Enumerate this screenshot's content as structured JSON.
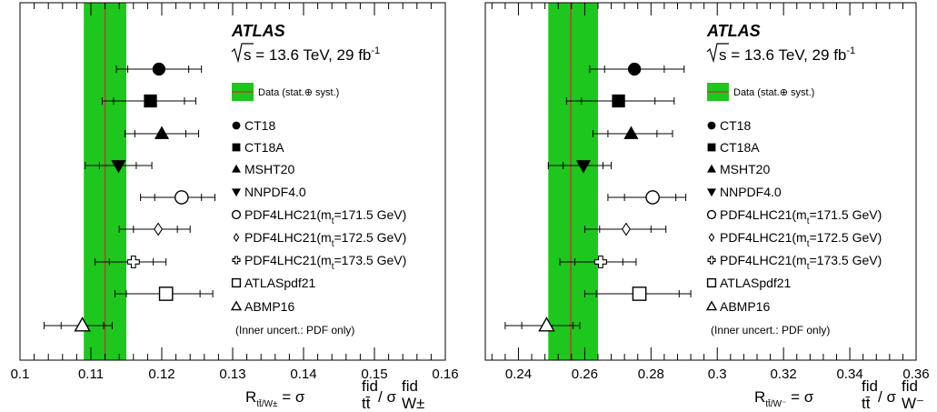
{
  "chart_data": [
    {
      "type": "scatter",
      "experiment": "ATLAS",
      "energy": {
        "sqrt_s": "s",
        "value": " = 13.6 TeV, 29 fb",
        "sup": "-1"
      },
      "xlabel": {
        "R": "R",
        "sub": "tt̄/W±",
        "eq": " = σ",
        "sup1": "fid",
        "sub1": "tt̄",
        "slash": " / σ",
        "sup2": "fid",
        "sub2": "W±"
      },
      "xlim": [
        0.1,
        0.16
      ],
      "xticks": [
        0.1,
        0.11,
        0.12,
        0.13,
        0.14,
        0.15,
        0.16
      ],
      "xtick_labels": [
        "0.1",
        "0.11",
        "0.12",
        "0.13",
        "0.14",
        "0.15",
        "0.16"
      ],
      "data_band": {
        "value": 0.112,
        "low": 0.109,
        "high": 0.115,
        "label": "Data (stat.⊕ syst.)"
      },
      "note": "(Inner uncert.: PDF only)",
      "points": [
        {
          "label": "CT18",
          "marker": "circle",
          "x": 0.1196,
          "inner": [
            0.1152,
            0.1238
          ],
          "outer": [
            0.1136,
            0.1256
          ]
        },
        {
          "label": "CT18A",
          "marker": "square",
          "x": 0.1184,
          "inner": [
            0.1132,
            0.1232
          ],
          "outer": [
            0.1116,
            0.1248
          ]
        },
        {
          "label": "MSHT20",
          "marker": "triangle-up",
          "x": 0.12,
          "inner": [
            0.1162,
            0.1234
          ],
          "outer": [
            0.1148,
            0.1252
          ]
        },
        {
          "label": "NNPDF4.0",
          "marker": "triangle-down",
          "x": 0.1139,
          "inner": [
            0.1112,
            0.1164
          ],
          "outer": [
            0.1092,
            0.1186
          ]
        },
        {
          "label": "PDF4LHC21(m",
          "label_sub": "t",
          "label_tail": "=171.5 GeV)",
          "marker": "open-circle",
          "x": 0.1228,
          "inner": [
            0.119,
            0.1256
          ],
          "outer": [
            0.117,
            0.1275
          ]
        },
        {
          "label": "PDF4LHC21(m",
          "label_sub": "t",
          "label_tail": "=172.5 GeV)",
          "marker": "open-diamond",
          "x": 0.1195,
          "inner": [
            0.116,
            0.1222
          ],
          "outer": [
            0.114,
            0.124
          ]
        },
        {
          "label": "PDF4LHC21(m",
          "label_sub": "t",
          "label_tail": "=173.5 GeV)",
          "marker": "open-cross",
          "x": 0.116,
          "inner": [
            0.1126,
            0.1188
          ],
          "outer": [
            0.1106,
            0.1206
          ]
        },
        {
          "label": "ATLASpdf21",
          "marker": "open-square",
          "x": 0.1206,
          "inner": [
            0.115,
            0.1254
          ],
          "outer": [
            0.1134,
            0.1272
          ]
        },
        {
          "label": "ABMP16",
          "marker": "open-triangle-up",
          "x": 0.1088,
          "inner": [
            0.1058,
            0.1118
          ],
          "outer": [
            0.1034,
            0.113
          ]
        }
      ]
    },
    {
      "type": "scatter",
      "experiment": "ATLAS",
      "energy": {
        "sqrt_s": "s",
        "value": " = 13.6 TeV, 29 fb",
        "sup": "-1"
      },
      "xlabel": {
        "R": "R",
        "sub": "tt̄/W⁻",
        "eq": " = σ",
        "sup1": "fid",
        "sub1": "tt̄",
        "slash": " / σ",
        "sup2": "fid",
        "sub2": "W⁻"
      },
      "xlim": [
        0.23,
        0.36
      ],
      "xticks": [
        0.24,
        0.26,
        0.28,
        0.3,
        0.32,
        0.34,
        0.36
      ],
      "xtick_labels": [
        "0.24",
        "0.26",
        "0.28",
        "0.3",
        "0.32",
        "0.34",
        "0.36"
      ],
      "data_band": {
        "value": 0.2558,
        "low": 0.249,
        "high": 0.264,
        "label": "Data (stat.⊕ syst.)"
      },
      "note": "(Inner uncert.: PDF only)",
      "points": [
        {
          "label": "CT18",
          "marker": "circle",
          "x": 0.275,
          "inner": [
            0.266,
            0.284
          ],
          "outer": [
            0.2615,
            0.29
          ]
        },
        {
          "label": "CT18A",
          "marker": "square",
          "x": 0.2702,
          "inner": [
            0.259,
            0.2812
          ],
          "outer": [
            0.2545,
            0.287
          ]
        },
        {
          "label": "MSHT20",
          "marker": "triangle-up",
          "x": 0.274,
          "inner": [
            0.267,
            0.2818
          ],
          "outer": [
            0.2625,
            0.2865
          ]
        },
        {
          "label": "NNPDF4.0",
          "marker": "triangle-down",
          "x": 0.2596,
          "inner": [
            0.2535,
            0.2655
          ],
          "outer": [
            0.249,
            0.268
          ]
        },
        {
          "label": "PDF4LHC21(m",
          "label_sub": "t",
          "label_tail": "=171.5 GeV)",
          "marker": "open-circle",
          "x": 0.2805,
          "inner": [
            0.272,
            0.2875
          ],
          "outer": [
            0.267,
            0.2905
          ]
        },
        {
          "label": "PDF4LHC21(m",
          "label_sub": "t",
          "label_tail": "=172.5 GeV)",
          "marker": "open-diamond",
          "x": 0.2725,
          "inner": [
            0.2645,
            0.28
          ],
          "outer": [
            0.26,
            0.2845
          ]
        },
        {
          "label": "PDF4LHC21(m",
          "label_sub": "t",
          "label_tail": "=173.5 GeV)",
          "marker": "open-cross",
          "x": 0.2648,
          "inner": [
            0.257,
            0.2715
          ],
          "outer": [
            0.2525,
            0.2755
          ]
        },
        {
          "label": "ATLASpdf21",
          "marker": "open-square",
          "x": 0.2765,
          "inner": [
            0.2635,
            0.2885
          ],
          "outer": [
            0.26,
            0.292
          ]
        },
        {
          "label": "ABMP16",
          "marker": "open-triangle-up",
          "x": 0.2485,
          "inner": [
            0.241,
            0.2565
          ],
          "outer": [
            0.236,
            0.2585
          ]
        }
      ]
    }
  ]
}
